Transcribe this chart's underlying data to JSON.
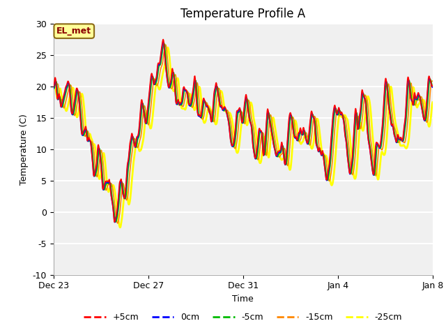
{
  "title": "Temperature Profile A",
  "xlabel": "Time",
  "ylabel": "Temperature (C)",
  "ylim": [
    -10,
    30
  ],
  "annotation_text": "EL_met",
  "background_color": "#f0f0f0",
  "plot_bg_color": "#f0f0f0",
  "grid_color": "white",
  "series_colors": [
    "#ff0000",
    "#0000ff",
    "#00bb00",
    "#ff8800",
    "#ffff00"
  ],
  "series_labels": [
    "+5cm",
    "0cm",
    "-5cm",
    "-15cm",
    "-25cm"
  ],
  "series_lw": [
    1.2,
    1.2,
    1.2,
    1.2,
    2.0
  ],
  "tick_dates": [
    "Dec 23",
    "Dec 27",
    "Dec 31",
    "Jan 4",
    "Jan 8"
  ],
  "tick_positions": [
    0,
    4,
    8,
    12,
    16
  ],
  "yticks": [
    -10,
    -5,
    0,
    5,
    10,
    15,
    20,
    25,
    30
  ],
  "title_fontsize": 12,
  "axis_fontsize": 9,
  "legend_fontsize": 9
}
